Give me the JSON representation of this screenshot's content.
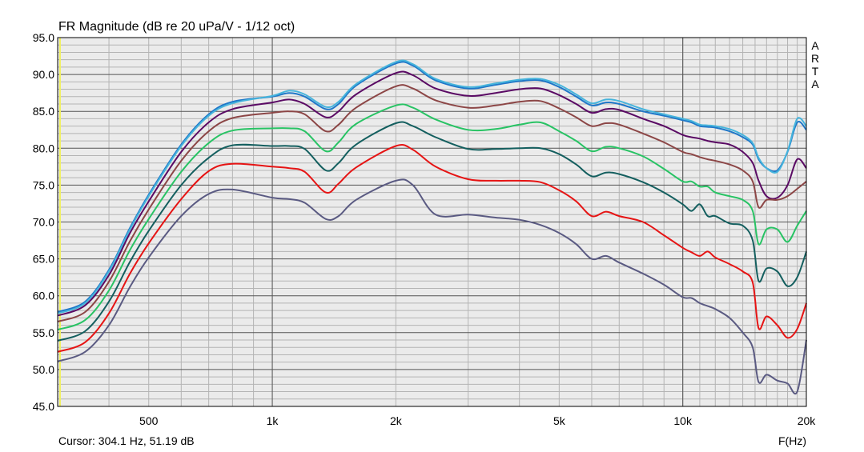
{
  "chart_data": {
    "type": "line",
    "title": "FR Magnitude (dB re 20 uPa/V - 1/12 oct)",
    "xlabel": "F(Hz)",
    "xscale": "log",
    "xlim": [
      300,
      20000
    ],
    "ylim": [
      45,
      95
    ],
    "grid": true,
    "x_ticks": [
      {
        "value": 500,
        "label": "500"
      },
      {
        "value": 1000,
        "label": "1k"
      },
      {
        "value": 2000,
        "label": "2k"
      },
      {
        "value": 5000,
        "label": "5k"
      },
      {
        "value": 10000,
        "label": "10k"
      },
      {
        "value": 20000,
        "label": "20k"
      }
    ],
    "y_ticks": [
      {
        "value": 95,
        "label": "95.0"
      },
      {
        "value": 90,
        "label": "90.0"
      },
      {
        "value": 85,
        "label": "85.0"
      },
      {
        "value": 80,
        "label": "80.0"
      },
      {
        "value": 75,
        "label": "75.0"
      },
      {
        "value": 70,
        "label": "70.0"
      },
      {
        "value": 65,
        "label": "65.0"
      },
      {
        "value": 60,
        "label": "60.0"
      },
      {
        "value": 55,
        "label": "55.0"
      },
      {
        "value": 50,
        "label": "50.0"
      },
      {
        "value": 45,
        "label": "45.0"
      }
    ],
    "x": [
      300,
      350,
      400,
      450,
      500,
      600,
      700,
      800,
      1000,
      1100,
      1200,
      1350,
      1450,
      1600,
      2000,
      2200,
      2500,
      3000,
      3500,
      4000,
      4500,
      5000,
      5500,
      6000,
      6500,
      7000,
      8000,
      9000,
      10000,
      10500,
      11000,
      11500,
      12000,
      13000,
      14000,
      14800,
      15300,
      16000,
      17000,
      18000,
      19000,
      20000
    ],
    "series": [
      {
        "color": "#1f77c8",
        "values": [
          57.8,
          59.2,
          63.5,
          69.2,
          73.7,
          80.5,
          84.6,
          86.3,
          87.0,
          87.5,
          87.0,
          85.3,
          86.0,
          88.5,
          91.5,
          91.2,
          89.2,
          88.1,
          88.6,
          89.1,
          89.2,
          88.3,
          87.0,
          85.8,
          86.2,
          86.0,
          85.0,
          84.4,
          83.8,
          83.5,
          83.0,
          82.9,
          82.8,
          82.3,
          81.5,
          80.5,
          78.5,
          77.3,
          77.0,
          79.5,
          83.5,
          82.5
        ]
      },
      {
        "color": "#46b4dc",
        "values": [
          57.6,
          59.0,
          63.3,
          69.0,
          73.5,
          80.3,
          84.4,
          86.1,
          87.1,
          87.8,
          87.3,
          85.6,
          86.3,
          88.7,
          91.7,
          91.4,
          89.4,
          88.3,
          88.8,
          89.3,
          89.4,
          88.6,
          87.3,
          86.1,
          86.6,
          86.4,
          85.3,
          84.6,
          84.0,
          83.7,
          83.2,
          83.1,
          83.0,
          82.6,
          81.8,
          80.7,
          78.7,
          77.3,
          76.8,
          79.6,
          84.0,
          83.0
        ]
      },
      {
        "color": "#5a0a64",
        "values": [
          57.3,
          58.7,
          62.8,
          68.5,
          72.8,
          79.5,
          83.5,
          85.3,
          86.2,
          86.6,
          86.0,
          84.2,
          85.0,
          87.3,
          90.2,
          89.9,
          88.1,
          87.1,
          87.5,
          88.0,
          88.1,
          87.2,
          86.0,
          84.8,
          85.3,
          85.2,
          84.0,
          83.0,
          81.8,
          81.5,
          81.3,
          81.0,
          80.8,
          80.5,
          79.5,
          78.0,
          75.6,
          73.5,
          73.3,
          75.0,
          78.5,
          77.3
        ]
      },
      {
        "color": "#8c4646",
        "values": [
          56.5,
          57.8,
          61.9,
          67.4,
          71.7,
          78.3,
          82.3,
          84.1,
          84.8,
          85.0,
          84.6,
          82.3,
          83.2,
          85.5,
          88.4,
          88.1,
          86.5,
          85.5,
          85.8,
          86.3,
          86.4,
          85.4,
          84.2,
          83.0,
          83.4,
          83.2,
          82.0,
          80.8,
          79.5,
          79.2,
          78.8,
          78.5,
          78.3,
          77.8,
          77.0,
          75.5,
          72.0,
          73.0,
          73.0,
          73.5,
          74.5,
          75.5
        ]
      },
      {
        "color": "#28c364",
        "values": [
          55.4,
          56.7,
          60.7,
          66.2,
          70.4,
          76.8,
          80.7,
          82.4,
          82.7,
          82.7,
          82.3,
          79.6,
          80.8,
          83.3,
          85.8,
          85.5,
          83.9,
          82.5,
          82.6,
          83.2,
          83.5,
          82.3,
          81.0,
          79.6,
          80.2,
          80.0,
          78.9,
          77.2,
          75.5,
          75.5,
          74.8,
          74.8,
          74.0,
          73.5,
          73.0,
          71.5,
          67.0,
          69.0,
          69.0,
          67.3,
          69.5,
          71.5
        ]
      },
      {
        "color": "#145f5f",
        "values": [
          53.9,
          55.2,
          59.2,
          64.6,
          68.8,
          75.0,
          78.7,
          80.4,
          80.3,
          80.3,
          79.9,
          77.0,
          78.0,
          80.5,
          83.4,
          83.0,
          81.5,
          79.9,
          79.9,
          80.0,
          80.0,
          79.2,
          77.8,
          76.2,
          76.7,
          76.5,
          75.4,
          74.0,
          72.4,
          71.5,
          72.4,
          70.8,
          70.8,
          69.8,
          69.5,
          67.5,
          62.0,
          63.7,
          63.3,
          61.3,
          62.5,
          66.0
        ]
      },
      {
        "color": "#e61414",
        "values": [
          52.4,
          53.7,
          57.6,
          63.0,
          67.1,
          73.1,
          76.9,
          77.9,
          77.5,
          77.3,
          76.8,
          74.0,
          75.2,
          77.4,
          80.3,
          79.8,
          77.5,
          75.8,
          75.6,
          75.6,
          75.4,
          74.3,
          72.8,
          70.8,
          71.4,
          70.8,
          70.0,
          68.2,
          66.5,
          65.9,
          65.4,
          66.0,
          65.2,
          64.3,
          63.3,
          61.8,
          55.6,
          57.2,
          56.0,
          54.3,
          55.5,
          59.0
        ]
      },
      {
        "color": "#5a5a82",
        "values": [
          51.1,
          52.4,
          56.0,
          61.2,
          65.2,
          70.8,
          73.8,
          74.4,
          73.3,
          73.1,
          72.6,
          70.4,
          70.8,
          73.0,
          75.6,
          75.0,
          71.0,
          71.0,
          70.6,
          70.3,
          69.6,
          68.5,
          67.0,
          65.0,
          65.4,
          64.5,
          63.0,
          61.5,
          59.8,
          59.7,
          59.0,
          58.6,
          58.2,
          57.0,
          55.0,
          53.0,
          48.3,
          49.3,
          48.5,
          48.1,
          47.0,
          54.0
        ]
      }
    ]
  },
  "watermark": "ARTA",
  "cursor_text": "Cursor: 304.1 Hz, 51.19 dB",
  "marker_color": "#f0f064"
}
